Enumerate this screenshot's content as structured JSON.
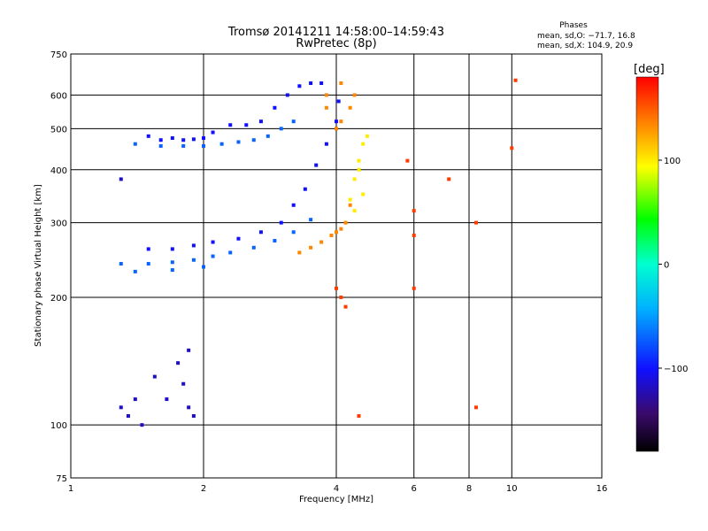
{
  "chart_data": {
    "type": "scatter",
    "title": "Tromsø 20141211 14:58:00–14:59:43",
    "subtitle": "RwPretec (8p)",
    "xlabel": "Frequency [MHz]",
    "ylabel": "Stationary phase Virtual Height [km]",
    "x_scale": "log",
    "y_scale": "log",
    "xlim": [
      1,
      16
    ],
    "ylim": [
      75,
      750
    ],
    "x_ticks": [
      1,
      2,
      4,
      6,
      8,
      10,
      16
    ],
    "x_tick_labels": [
      "1",
      "2",
      "4",
      "6",
      "8",
      "10",
      "16"
    ],
    "y_ticks": [
      75,
      100,
      200,
      300,
      400,
      500,
      600,
      750
    ],
    "y_tick_labels": [
      "75",
      "100",
      "200",
      "300",
      "400",
      "500",
      "600",
      "750"
    ],
    "grid": true,
    "legend": {
      "title": "Phases",
      "lines": [
        "mean, sd,O: −71.7, 16.8",
        "mean, sd,X: 104.9, 20.9"
      ],
      "placement": "top-right"
    },
    "colorbar": {
      "label": "[deg]",
      "range": [
        -180,
        180
      ],
      "ticks": [
        100,
        0,
        -100
      ],
      "tick_labels": [
        "100",
        "0",
        "−100"
      ]
    },
    "series": [
      {
        "value_deg": -100,
        "points": [
          [
            1.5,
            480
          ],
          [
            1.6,
            470
          ],
          [
            1.7,
            475
          ],
          [
            1.8,
            470
          ],
          [
            1.9,
            472
          ],
          [
            2.0,
            475
          ],
          [
            2.1,
            490
          ],
          [
            2.3,
            510
          ],
          [
            2.5,
            510
          ],
          [
            2.7,
            520
          ],
          [
            2.9,
            560
          ],
          [
            3.1,
            600
          ],
          [
            3.3,
            630
          ],
          [
            3.5,
            640
          ],
          [
            3.7,
            640
          ],
          [
            1.5,
            260
          ],
          [
            1.7,
            260
          ],
          [
            1.9,
            265
          ],
          [
            2.1,
            270
          ],
          [
            2.4,
            275
          ],
          [
            2.7,
            285
          ],
          [
            3.0,
            300
          ],
          [
            3.2,
            330
          ],
          [
            3.4,
            360
          ],
          [
            3.6,
            410
          ],
          [
            3.8,
            460
          ],
          [
            4.0,
            520
          ],
          [
            4.05,
            580
          ]
        ]
      },
      {
        "value_deg": -70,
        "points": [
          [
            1.4,
            460
          ],
          [
            1.6,
            455
          ],
          [
            1.8,
            455
          ],
          [
            2.0,
            455
          ],
          [
            2.2,
            460
          ],
          [
            2.4,
            465
          ],
          [
            2.6,
            470
          ],
          [
            2.8,
            480
          ],
          [
            3.0,
            500
          ],
          [
            3.2,
            520
          ],
          [
            1.3,
            240
          ],
          [
            1.5,
            240
          ],
          [
            1.7,
            242
          ],
          [
            1.9,
            245
          ],
          [
            2.1,
            250
          ],
          [
            2.3,
            255
          ],
          [
            2.6,
            262
          ],
          [
            2.9,
            272
          ],
          [
            3.2,
            285
          ],
          [
            3.5,
            305
          ],
          [
            1.4,
            230
          ],
          [
            1.7,
            232
          ],
          [
            2.0,
            236
          ]
        ]
      },
      {
        "value_deg": -115,
        "points": [
          [
            1.3,
            110
          ],
          [
            1.35,
            105
          ],
          [
            1.4,
            115
          ],
          [
            1.45,
            100
          ],
          [
            1.55,
            130
          ],
          [
            1.65,
            115
          ],
          [
            1.75,
            140
          ],
          [
            1.8,
            125
          ],
          [
            1.85,
            110
          ],
          [
            1.9,
            105
          ],
          [
            1.85,
            150
          ],
          [
            1.3,
            380
          ]
        ]
      },
      {
        "value_deg": 100,
        "points": [
          [
            4.2,
            300
          ],
          [
            4.3,
            340
          ],
          [
            4.4,
            380
          ],
          [
            4.5,
            420
          ],
          [
            4.6,
            460
          ],
          [
            4.7,
            480
          ],
          [
            4.4,
            320
          ],
          [
            4.6,
            350
          ],
          [
            4.5,
            400
          ]
        ]
      },
      {
        "value_deg": 135,
        "points": [
          [
            3.3,
            255
          ],
          [
            3.5,
            262
          ],
          [
            3.7,
            270
          ],
          [
            3.9,
            280
          ],
          [
            4.0,
            285
          ],
          [
            4.1,
            290
          ],
          [
            4.2,
            300
          ],
          [
            4.3,
            330
          ],
          [
            4.0,
            500
          ],
          [
            4.1,
            520
          ],
          [
            4.3,
            560
          ],
          [
            4.4,
            600
          ],
          [
            3.8,
            560
          ],
          [
            3.8,
            600
          ],
          [
            4.1,
            640
          ]
        ]
      },
      {
        "value_deg": 160,
        "points": [
          [
            4.0,
            210
          ],
          [
            4.1,
            200
          ],
          [
            4.2,
            190
          ],
          [
            6.0,
            320
          ],
          [
            6.0,
            280
          ],
          [
            6.0,
            210
          ],
          [
            5.8,
            420
          ],
          [
            7.2,
            380
          ],
          [
            8.3,
            300
          ],
          [
            8.3,
            110
          ],
          [
            10.0,
            450
          ],
          [
            10.2,
            650
          ],
          [
            4.5,
            105
          ]
        ]
      }
    ]
  }
}
